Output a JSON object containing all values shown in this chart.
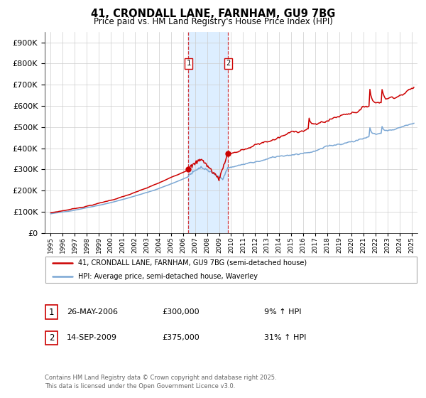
{
  "title": "41, CRONDALL LANE, FARNHAM, GU9 7BG",
  "subtitle": "Price paid vs. HM Land Registry's House Price Index (HPI)",
  "legend_line1": "41, CRONDALL LANE, FARNHAM, GU9 7BG (semi-detached house)",
  "legend_line2": "HPI: Average price, semi-detached house, Waverley",
  "red_color": "#cc0000",
  "blue_color": "#7ba7d4",
  "shading_color": "#ddeeff",
  "marker1_date": 2006.4,
  "marker2_date": 2009.72,
  "marker1_price": 300000,
  "marker2_price": 375000,
  "event1_date_str": "26-MAY-2006",
  "event1_price_str": "£300,000",
  "event1_hpi_str": "9% ↑ HPI",
  "event2_date_str": "14-SEP-2009",
  "event2_price_str": "£375,000",
  "event2_hpi_str": "31% ↑ HPI",
  "footer": "Contains HM Land Registry data © Crown copyright and database right 2025.\nThis data is licensed under the Open Government Licence v3.0.",
  "ylim_max": 950000,
  "ylim_min": 0,
  "xlim_min": 1994.5,
  "xlim_max": 2025.5,
  "background_color": "#ffffff",
  "grid_color": "#cccccc"
}
